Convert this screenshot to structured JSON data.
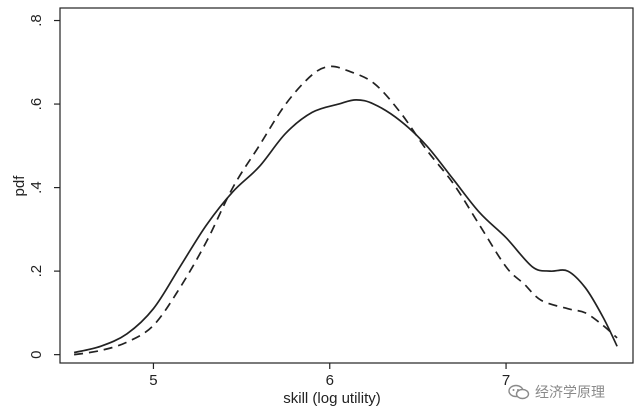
{
  "chart_data": {
    "type": "line",
    "title": "",
    "xlabel": "skill (log utility)",
    "ylabel": "pdf",
    "xlim": [
      4.47,
      7.72
    ],
    "ylim": [
      -0.02,
      0.83
    ],
    "x_ticks": [
      5,
      6,
      7
    ],
    "x_tick_labels": [
      "5",
      "6",
      "7"
    ],
    "y_ticks": [
      0,
      0.2,
      0.4,
      0.6,
      0.8
    ],
    "y_tick_labels": [
      "0",
      ".2",
      ".4",
      ".6",
      ".8"
    ],
    "grid": false,
    "legend": "none",
    "series": [
      {
        "style": "solid",
        "color": "#222222",
        "x": [
          4.55,
          4.7,
          4.85,
          5.0,
          5.15,
          5.3,
          5.45,
          5.6,
          5.75,
          5.9,
          6.05,
          6.15,
          6.25,
          6.4,
          6.55,
          6.7,
          6.85,
          7.0,
          7.15,
          7.25,
          7.35,
          7.45,
          7.55,
          7.63
        ],
        "y": [
          0.005,
          0.02,
          0.05,
          0.11,
          0.21,
          0.31,
          0.39,
          0.45,
          0.53,
          0.58,
          0.6,
          0.61,
          0.6,
          0.56,
          0.5,
          0.42,
          0.34,
          0.28,
          0.21,
          0.2,
          0.2,
          0.16,
          0.09,
          0.02
        ]
      },
      {
        "style": "dashed",
        "color": "#222222",
        "x": [
          4.55,
          4.7,
          4.85,
          5.0,
          5.15,
          5.3,
          5.45,
          5.6,
          5.75,
          5.9,
          6.0,
          6.1,
          6.25,
          6.4,
          6.55,
          6.7,
          6.85,
          7.0,
          7.1,
          7.2,
          7.35,
          7.45,
          7.55,
          7.63
        ],
        "y": [
          0.0,
          0.01,
          0.03,
          0.07,
          0.16,
          0.27,
          0.4,
          0.5,
          0.6,
          0.67,
          0.69,
          0.68,
          0.65,
          0.58,
          0.49,
          0.41,
          0.31,
          0.21,
          0.17,
          0.13,
          0.11,
          0.1,
          0.07,
          0.04
        ]
      }
    ]
  },
  "watermark": {
    "text": "经济学原理",
    "icon": "wechat-icon"
  }
}
